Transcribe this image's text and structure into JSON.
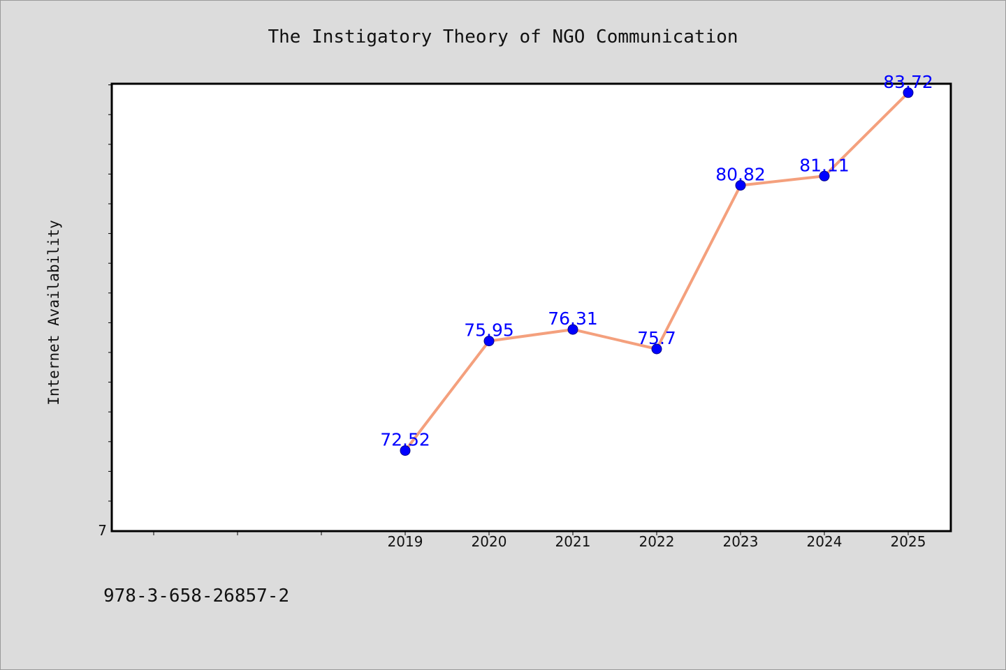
{
  "footer_text": "978-3-658-26857-2",
  "colors": {
    "background": "#dcdcdc",
    "plot_background": "#ffffff",
    "line": "#f4a07d",
    "marker": "#0000ff",
    "data_label": "#0000ff"
  },
  "chart_data": {
    "type": "line",
    "title": "The Instigatory Theory of NGO Communication",
    "xlabel": "",
    "ylabel": "Internet Availability",
    "x": [
      "2019",
      "2020",
      "2021",
      "2022",
      "2023",
      "2024",
      "2025"
    ],
    "series": [
      {
        "values": [
          72.52,
          75.95,
          76.31,
          75.7,
          80.82,
          81.11,
          83.72
        ],
        "labels": [
          "72.52",
          "75.95",
          "76.31",
          "75.7",
          "80.82",
          "81.11",
          "83.72"
        ]
      }
    ],
    "x_range": [
      "2016",
      "2025"
    ],
    "ylim": [
      70.0,
      84.0
    ],
    "y_tick_labels": [
      "7"
    ],
    "grid": false,
    "legend": "none"
  }
}
